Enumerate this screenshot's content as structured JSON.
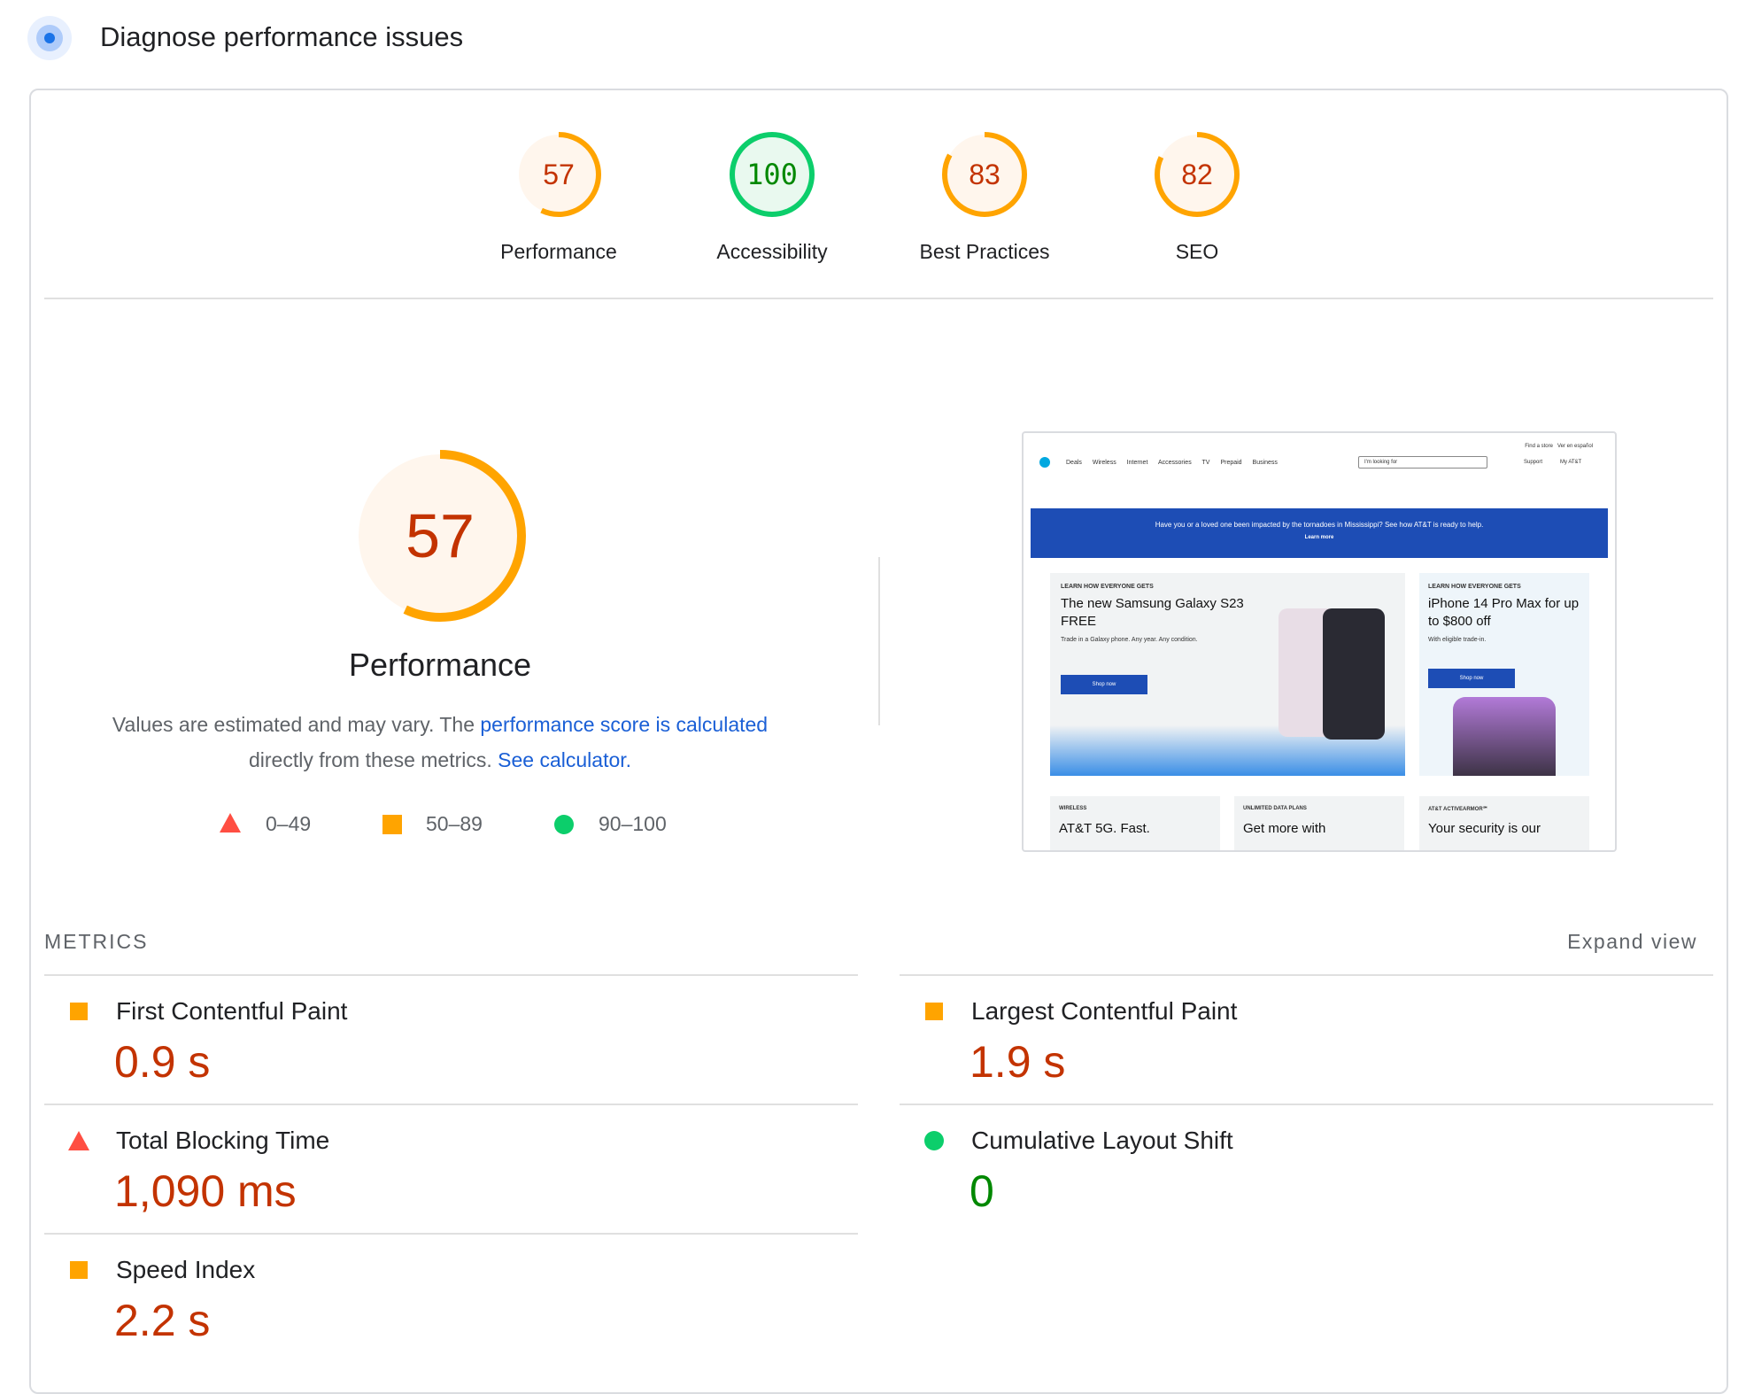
{
  "header": {
    "title": "Diagnose performance issues"
  },
  "scale_max": 100,
  "scores": [
    {
      "label": "Performance",
      "value": 57,
      "color": "#ffa400",
      "text_color": "#c33300",
      "fill": "#fff6ed"
    },
    {
      "label": "Accessibility",
      "value": 100,
      "color": "#0cce6b",
      "text_color": "#008800",
      "fill": "#e9f9ef"
    },
    {
      "label": "Best Practices",
      "value": 83,
      "color": "#ffa400",
      "text_color": "#c33300",
      "fill": "#fff6ed"
    },
    {
      "label": "SEO",
      "value": 82,
      "color": "#ffa400",
      "text_color": "#c33300",
      "fill": "#fff6ed"
    }
  ],
  "summary": {
    "text_before": "Values are estimated and may vary. The",
    "link1": "performance score is calculated",
    "text_middle": "directly from these metrics.",
    "link2": "See calculator."
  },
  "legend": [
    "0–49",
    "50–89",
    "90–100"
  ],
  "metrics": {
    "heading": "METRICS",
    "expand": "Expand view",
    "items": [
      {
        "name": "First Contentful Paint",
        "value": "0.9 s",
        "color": "#c33300"
      },
      {
        "name": "Largest Contentful Paint",
        "value": "1.9 s",
        "color": "#c33300"
      },
      {
        "name": "Total Blocking Time",
        "value": "1,090 ms",
        "color": "#c33300"
      },
      {
        "name": "Cumulative Layout Shift",
        "value": "0",
        "color": "#008800"
      },
      {
        "name": "Speed Index",
        "value": "2.2 s",
        "color": "#c33300"
      }
    ]
  },
  "thumbnail": {
    "top_links": [
      "Find a store",
      "Ver en español"
    ],
    "nav": [
      "Deals",
      "Wireless",
      "Internet",
      "Accessories",
      "TV",
      "Prepaid",
      "Business"
    ],
    "search": "I'm looking for",
    "account": [
      "Support",
      "My AT&T"
    ],
    "banner": "Have you or a loved one been impacted by the tornadoes in Mississippi? See how AT&T is ready to help.",
    "banner_link": "Learn more",
    "cards": [
      {
        "eyebrow": "LEARN HOW EVERYONE GETS",
        "title": "The new Samsung Galaxy S23 FREE",
        "text": "Trade in a Galaxy phone. Any year. Any condition.",
        "button": "Shop now"
      },
      {
        "eyebrow": "LEARN HOW EVERYONE GETS",
        "title": "iPhone 14 Pro Max for up to $800 off",
        "text": "With eligible trade-in.",
        "button": "Shop now"
      }
    ],
    "tiles": [
      {
        "eyebrow": "WIRELESS",
        "title": "AT&T 5G. Fast."
      },
      {
        "eyebrow": "UNLIMITED DATA PLANS",
        "title": "Get more with"
      },
      {
        "eyebrow": "AT&T ACTIVEARMOR℠",
        "title": "Your security is our"
      }
    ]
  }
}
